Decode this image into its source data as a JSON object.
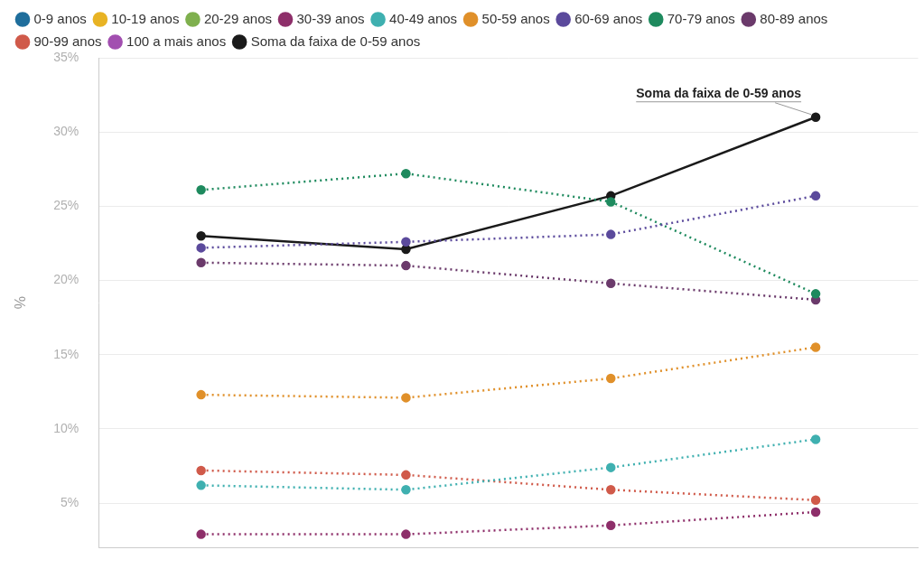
{
  "chart_data": {
    "type": "line",
    "annotation": "Soma da faixa de 0-59 anos",
    "y_label": "%",
    "categories": [
      null,
      null,
      null,
      null
    ],
    "ylim": [
      2,
      35
    ],
    "yticks": [
      {
        "value": 5,
        "label": "5%"
      },
      {
        "value": 10,
        "label": "10%"
      },
      {
        "value": 15,
        "label": "15%"
      },
      {
        "value": 20,
        "label": "20%"
      },
      {
        "value": 25,
        "label": "25%"
      },
      {
        "value": 30,
        "label": "30%"
      },
      {
        "value": 35,
        "label": "35%"
      }
    ],
    "grid": true,
    "legend": "top-left",
    "marker": "circle",
    "series": [
      {
        "name": "0-9 anos",
        "color": "#1f6e9c",
        "line_style": "dotted",
        "values": [
          null,
          null,
          null,
          null
        ]
      },
      {
        "name": "10-19 anos",
        "color": "#e8b324",
        "line_style": "dotted",
        "values": [
          null,
          null,
          null,
          null
        ]
      },
      {
        "name": "20-29 anos",
        "color": "#7fb04e",
        "line_style": "dotted",
        "values": [
          null,
          null,
          null,
          null
        ]
      },
      {
        "name": "30-39 anos",
        "color": "#8e2f6a",
        "line_style": "dotted",
        "values": [
          2.9,
          2.9,
          3.5,
          4.4
        ]
      },
      {
        "name": "40-49 anos",
        "color": "#3fb0b0",
        "line_style": "dotted",
        "values": [
          6.2,
          5.9,
          7.4,
          9.3
        ]
      },
      {
        "name": "50-59 anos",
        "color": "#e0902a",
        "line_style": "dotted",
        "values": [
          12.3,
          12.1,
          13.4,
          15.5
        ]
      },
      {
        "name": "60-69 anos",
        "color": "#5b4a9c",
        "line_style": "dotted",
        "values": [
          22.2,
          22.6,
          23.1,
          25.7
        ]
      },
      {
        "name": "70-79 anos",
        "color": "#1e8a5e",
        "line_style": "dotted",
        "values": [
          26.1,
          27.2,
          25.3,
          19.1
        ]
      },
      {
        "name": "80-89 anos",
        "color": "#6b3a6b",
        "line_style": "dotted",
        "values": [
          21.2,
          21.0,
          19.8,
          18.7
        ]
      },
      {
        "name": "90-99 anos",
        "color": "#d05a4a",
        "line_style": "dotted",
        "values": [
          7.2,
          6.9,
          5.9,
          5.2
        ]
      },
      {
        "name": "100 a mais anos",
        "color": "#a24fb0",
        "line_style": "dotted",
        "values": [
          null,
          null,
          null,
          null
        ]
      },
      {
        "name": "Soma da faixa de 0-59 anos",
        "color": "#1a1a1a",
        "line_style": "solid",
        "values": [
          23.0,
          22.1,
          25.7,
          31.0
        ]
      }
    ]
  }
}
